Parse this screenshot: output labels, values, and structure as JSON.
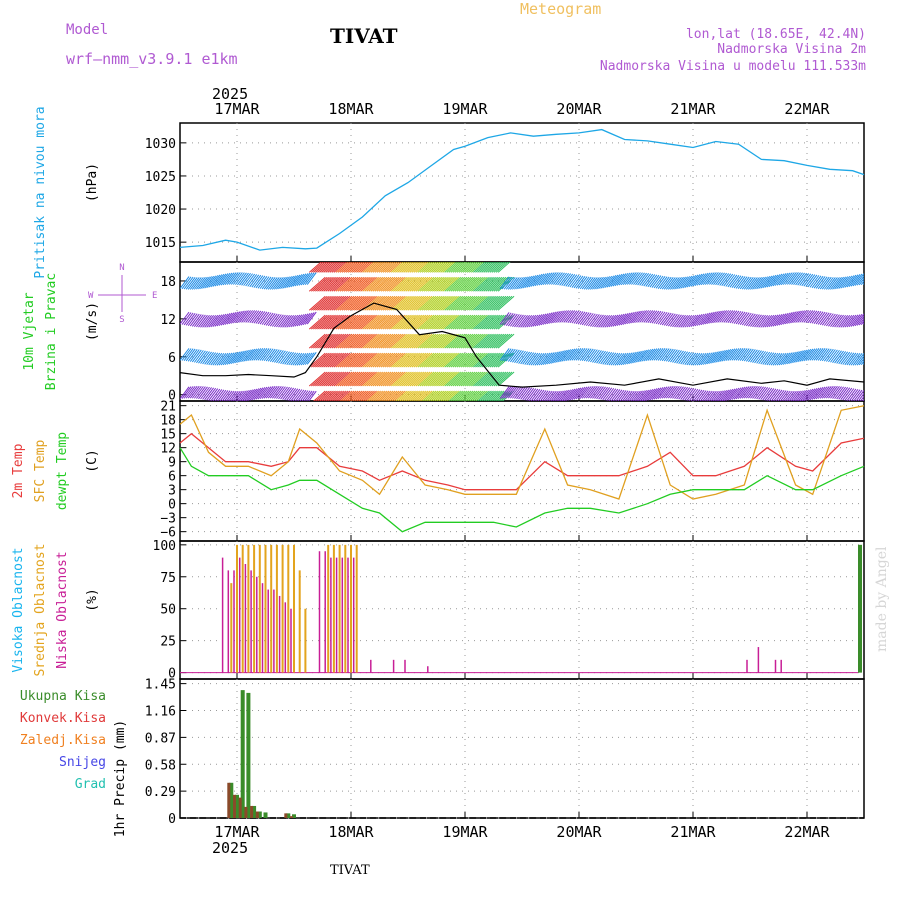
{
  "header": {
    "model_label": "Model",
    "model_name": "wrf–nmm_v3.9.1 e1km",
    "station": "TIVAT",
    "product": "Meteogram",
    "lonlat": "lon,lat (18.65E, 42.4N)",
    "elevation": "Nadmorska Visina 2m",
    "model_elevation": "Nadmorska Visina u modelu 111.533m",
    "year_top": "2025",
    "year_bottom": "2025",
    "footer_station": "TIVAT",
    "credit": "made by Angel"
  },
  "colors": {
    "pressure": "#1ea7e6",
    "temp2m": "#e83c3c",
    "sfc": "#e0a020",
    "dewpt": "#22cc22",
    "high": "#18b4ee",
    "mid": "#e3a41e",
    "low": "#c81e96",
    "total": "#3a8c2a",
    "conv": "#e03a3a",
    "frozen": "#f08020",
    "snow": "#4646e6",
    "grad": "#22c0b0",
    "purple": "#b05ad2",
    "gold": "#f0c060"
  },
  "days": [
    "17MAR",
    "18MAR",
    "19MAR",
    "20MAR",
    "21MAR",
    "22MAR"
  ],
  "panels": {
    "pressure": {
      "labels": [
        "Pritisak na nivou mora"
      ],
      "unit": "(hPa)",
      "ticks": [
        "1015",
        "1020",
        "1025",
        "1030"
      ]
    },
    "wind": {
      "labels": [
        "10m Vjetar",
        "Brzina i Pravac"
      ],
      "unit": "(m/s)",
      "ticks": [
        "0",
        "6",
        "12",
        "18"
      ],
      "compass": {
        "n": "N",
        "s": "S",
        "w": "W",
        "e": "E"
      }
    },
    "temp": {
      "labels": [
        "2m Temp",
        "SFC Temp",
        "dewpt Temp"
      ],
      "unit": "(C)",
      "ticks": [
        "−6",
        "−3",
        "0",
        "3",
        "6",
        "9",
        "12",
        "15",
        "18",
        "21"
      ]
    },
    "cloud": {
      "labels": [
        "Visoka Oblacnost",
        "Srednja Oblacnost",
        "Niska Oblacnost"
      ],
      "unit": "(%)",
      "ticks": [
        "0",
        "25",
        "50",
        "75",
        "100"
      ]
    },
    "precip": {
      "labels": [
        "Ukupna Kisa",
        "Konvek.Kisa",
        "Zaledj.Kisa",
        "Snijeg",
        "Grad"
      ],
      "unit": "1hr Precip (mm)",
      "ticks": [
        "0",
        "0.29",
        "0.58",
        "0.87",
        "1.16",
        "1.45"
      ]
    }
  },
  "chart_data": [
    {
      "type": "line",
      "title": "",
      "ylabel": "Pritisak na nivou mora (hPa)",
      "ylim": [
        1012,
        1033
      ],
      "x": [
        16.5,
        16.7,
        16.9,
        17.0,
        17.2,
        17.4,
        17.6,
        17.7,
        17.9,
        18.1,
        18.3,
        18.5,
        18.7,
        18.9,
        19.0,
        19.2,
        19.4,
        19.6,
        19.8,
        20.0,
        20.2,
        20.4,
        20.6,
        20.8,
        21.0,
        21.2,
        21.4,
        21.6,
        21.8,
        22.0,
        22.2,
        22.4,
        22.5
      ],
      "series": [
        {
          "values": [
            1014.2,
            1014.5,
            1015.3,
            1015.0,
            1013.8,
            1014.2,
            1014.0,
            1014.1,
            1016.3,
            1018.8,
            1022.0,
            1024.0,
            1026.5,
            1029.0,
            1029.5,
            1030.8,
            1031.5,
            1031.0,
            1031.3,
            1031.5,
            1032.0,
            1030.5,
            1030.3,
            1029.8,
            1029.3,
            1030.2,
            1029.8,
            1027.5,
            1027.3,
            1026.6,
            1026.0,
            1025.8,
            1025.2
          ]
        }
      ]
    },
    {
      "type": "line",
      "title": "",
      "ylabel": "10m Vjetar Brzina i Pravac (m/s)",
      "ylim": [
        -1,
        21
      ],
      "x": [
        16.5,
        16.7,
        16.9,
        17.1,
        17.3,
        17.5,
        17.6,
        17.7,
        17.85,
        18.0,
        18.2,
        18.4,
        18.6,
        18.8,
        19.0,
        19.1,
        19.3,
        19.5,
        19.8,
        20.1,
        20.4,
        20.7,
        21.0,
        21.3,
        21.6,
        21.8,
        22.0,
        22.2,
        22.5
      ],
      "series": [
        {
          "values": [
            3.5,
            3.0,
            3.0,
            3.2,
            3.0,
            2.8,
            3.5,
            6.0,
            10.5,
            12.5,
            14.5,
            13.5,
            9.5,
            10.0,
            9.0,
            6.0,
            1.5,
            1.2,
            1.5,
            2.0,
            1.5,
            2.5,
            1.5,
            2.5,
            1.8,
            2.2,
            1.5,
            2.5,
            2.0
          ]
        }
      ]
    },
    {
      "type": "line",
      "title": "",
      "ylabel": "2m Temp / SFC Temp / dewpt Temp (C)",
      "ylim": [
        -8,
        22
      ],
      "x": [
        16.5,
        16.6,
        16.75,
        16.9,
        17.1,
        17.3,
        17.45,
        17.55,
        17.7,
        17.9,
        18.1,
        18.25,
        18.45,
        18.65,
        18.85,
        19.0,
        19.25,
        19.45,
        19.7,
        19.9,
        20.1,
        20.35,
        20.6,
        20.8,
        21.0,
        21.2,
        21.45,
        21.65,
        21.9,
        22.05,
        22.3,
        22.5
      ],
      "series": [
        {
          "name": "2m Temp",
          "values": [
            13,
            15,
            12,
            9,
            9,
            8,
            9,
            12,
            12,
            8,
            7,
            5,
            7,
            5,
            4,
            3,
            3,
            3,
            9,
            6,
            6,
            6,
            8,
            11,
            6,
            6,
            8,
            12,
            8,
            7,
            13,
            14
          ]
        },
        {
          "name": "SFC Temp",
          "values": [
            17,
            19,
            11,
            8,
            8,
            6,
            9,
            16,
            13,
            7,
            5,
            2,
            10,
            4,
            3,
            2,
            2,
            2,
            16,
            4,
            3,
            1,
            19,
            4,
            1,
            2,
            4,
            20,
            4,
            2,
            20,
            21
          ]
        },
        {
          "name": "dewpt Temp",
          "values": [
            12,
            8,
            6,
            6,
            6,
            3,
            4,
            5,
            5,
            2,
            -1,
            -2,
            -6,
            -4,
            -4,
            -4,
            -4,
            -5,
            -2,
            -1,
            -1,
            -2,
            0,
            2,
            3,
            3,
            3,
            6,
            3,
            3,
            6,
            8
          ]
        }
      ]
    },
    {
      "type": "bar",
      "title": "",
      "ylabel": "Oblacnost (%)",
      "ylim": [
        0,
        100
      ],
      "x": [
        16.9,
        16.95,
        17.0,
        17.05,
        17.1,
        17.15,
        17.2,
        17.25,
        17.3,
        17.35,
        17.4,
        17.45,
        17.5,
        17.55,
        17.6,
        17.75,
        17.8,
        17.85,
        17.9,
        17.95,
        18.0,
        18.05,
        18.2,
        18.4,
        18.5,
        18.7,
        21.5,
        21.6,
        21.75,
        21.8
      ],
      "series": [
        {
          "name": "Srednja Oblacnost",
          "values": [
            0,
            70,
            100,
            100,
            100,
            100,
            100,
            100,
            100,
            100,
            100,
            100,
            100,
            80,
            50,
            0,
            100,
            100,
            100,
            100,
            100,
            100,
            0,
            0,
            0,
            0,
            0,
            0,
            0,
            0
          ]
        },
        {
          "name": "Niska Oblacnost",
          "values": [
            90,
            80,
            80,
            90,
            85,
            80,
            75,
            70,
            65,
            65,
            60,
            55,
            50,
            0,
            0,
            95,
            95,
            90,
            90,
            90,
            90,
            90,
            10,
            10,
            10,
            5,
            10,
            20,
            10,
            10
          ]
        }
      ]
    },
    {
      "type": "bar",
      "title": "",
      "ylabel": "1hr Precip (mm)",
      "ylim": [
        0,
        1.45
      ],
      "x": [
        16.95,
        17.0,
        17.05,
        17.1,
        17.15,
        17.2,
        17.25,
        17.45,
        17.5
      ],
      "series": [
        {
          "name": "Ukupna Kisa",
          "values": [
            0.38,
            0.25,
            1.38,
            1.35,
            0.13,
            0.07,
            0.06,
            0.05,
            0.04
          ]
        },
        {
          "name": "Konvek.Kisa",
          "values": [
            0.38,
            0.25,
            0.22,
            0.12,
            0.13,
            0.07,
            0.0,
            0.05,
            0.02
          ]
        }
      ]
    }
  ]
}
